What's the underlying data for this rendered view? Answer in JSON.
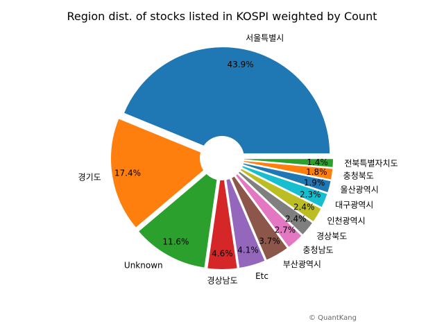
{
  "chart_data": {
    "type": "pie",
    "title": "Region dist. of stocks listed in KOSPI weighted by Count",
    "categories": [
      "서울특별시",
      "경기도",
      "Unknown",
      "경상남도",
      "Etc",
      "부산광역시",
      "충청남도",
      "경상북도",
      "인천광역시",
      "대구광역시",
      "울산광역시",
      "충청북도",
      "전북특별자치도"
    ],
    "values": [
      43.9,
      17.4,
      11.6,
      4.6,
      4.1,
      3.7,
      2.7,
      2.4,
      2.4,
      2.3,
      1.9,
      1.8,
      1.4
    ],
    "value_labels": [
      "43.9%",
      "17.4%",
      "11.6%",
      "4.6%",
      "4.1%",
      "3.7%",
      "2.7%",
      "2.4%",
      "2.4%",
      "2.3%",
      "1.9%",
      "1.8%",
      "1.4%"
    ],
    "colors": [
      "#1f77b4",
      "#ff7f0e",
      "#2ca02c",
      "#d62728",
      "#9467bd",
      "#8c564b",
      "#e377c2",
      "#7f7f7f",
      "#bcbd22",
      "#17becf",
      "#1f77b4",
      "#ff7f0e",
      "#2ca02c"
    ],
    "donut_hole": true,
    "legend": "none"
  },
  "credit": "© QuantKang"
}
